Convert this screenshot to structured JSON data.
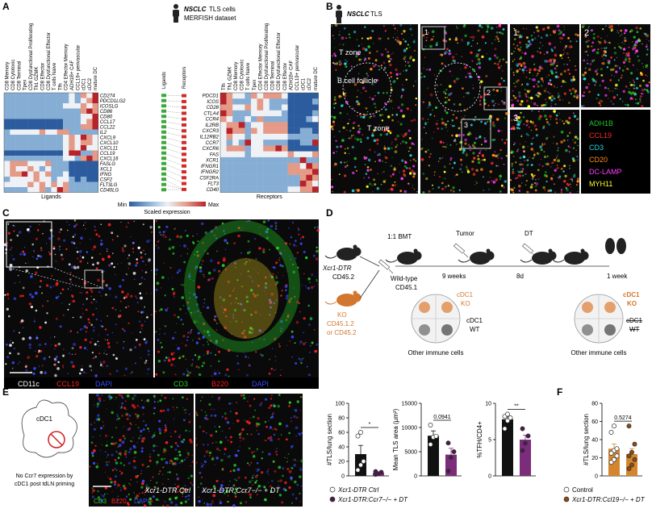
{
  "panel_a": {
    "letter": "A",
    "title": {
      "italic": "NSCLC",
      "rest": "TLS cells",
      "line2": "MERFISH dataset"
    },
    "ligand_cell_types": [
      "CD8 Memory",
      "CD8 Cytotoxic",
      "CD8 Terminal",
      "Tpex",
      "CD8 Dysfunctional Proliferating",
      "Th1 GZMK",
      "CD8 Effector",
      "CD8 Dysfunctional Effector",
      "T cells Naive",
      "Tfh",
      "CD4 Effector Memory",
      "ADH1B+ CAF",
      "CCL19+ perivascular",
      "cDC1",
      "cDC2",
      "mature DC"
    ],
    "ligands": [
      "CD274",
      "PDCD1LG2",
      "ICOSLG",
      "CD86",
      "CD80",
      "CCL17",
      "CCL22",
      "IL2",
      "CXCL9",
      "CXCL10",
      "CXCL11",
      "CCL19",
      "CXCL16",
      "FASLG",
      "XCL1",
      "IFNG",
      "CSF2",
      "FLT3LG",
      "CD40LG"
    ],
    "receptor_cell_types": [
      "Tfh",
      "Th1 GZMK",
      "CD8 Memory",
      "CD8 Cytotoxic",
      "T cells Naive",
      "Tpex",
      "CD4 Effector Memory",
      "CD8 Dysfunctional Proliferating",
      "CD8 Terminal",
      "CD8 Dysfunctional Effector",
      "CD8 Effector",
      "ADH1B+ CAF",
      "CCL19+ perivascular",
      "cDC1",
      "cDC2",
      "mature DC"
    ],
    "receptors": [
      "PDCD1",
      "ICOS",
      "CD28",
      "CTLA4",
      "CCR4",
      "IL2RB",
      "CXCR3",
      "IL12RB2",
      "CCR7",
      "CXCR6",
      "FAS",
      "XCR1",
      "IFNGR1",
      "IFNGR2",
      "CSF2RA",
      "FLT3",
      "CD40"
    ],
    "colormap": [
      "#2c5c9e",
      "#86aed4",
      "#eef1f5",
      "#e49a86",
      "#b8232a"
    ],
    "ligand_matrix": [
      [
        1,
        1,
        1,
        1,
        1,
        1,
        1,
        1,
        1,
        1,
        1,
        2,
        1,
        3,
        2,
        4
      ],
      [
        1,
        1,
        1,
        1,
        1,
        1,
        1,
        1,
        1,
        1,
        1,
        2,
        1,
        2,
        3,
        4
      ],
      [
        1,
        1,
        1,
        1,
        1,
        1,
        1,
        1,
        1,
        1,
        2,
        2,
        2,
        3,
        2,
        3
      ],
      [
        1,
        1,
        1,
        1,
        1,
        1,
        1,
        1,
        1,
        1,
        1,
        1,
        1,
        3,
        4,
        3
      ],
      [
        1,
        1,
        1,
        1,
        1,
        1,
        1,
        1,
        1,
        1,
        1,
        1,
        1,
        2,
        2,
        4
      ],
      [
        0,
        0,
        0,
        0,
        0,
        0,
        0,
        0,
        0,
        0,
        1,
        1,
        1,
        2,
        3,
        4
      ],
      [
        0,
        0,
        0,
        0,
        0,
        0,
        0,
        0,
        0,
        0,
        1,
        1,
        1,
        3,
        3,
        4
      ],
      [
        1,
        2,
        2,
        2,
        2,
        2,
        3,
        2,
        2,
        3,
        3,
        1,
        1,
        1,
        1,
        1
      ],
      [
        1,
        1,
        1,
        1,
        1,
        1,
        1,
        1,
        1,
        1,
        2,
        3,
        2,
        4,
        3,
        2
      ],
      [
        1,
        1,
        1,
        1,
        1,
        1,
        1,
        1,
        1,
        1,
        2,
        3,
        2,
        3,
        3,
        2
      ],
      [
        1,
        1,
        1,
        1,
        1,
        1,
        1,
        1,
        1,
        1,
        2,
        3,
        2,
        4,
        2,
        2
      ],
      [
        0,
        0,
        0,
        0,
        0,
        0,
        0,
        0,
        0,
        0,
        2,
        4,
        4,
        1,
        1,
        3
      ],
      [
        1,
        1,
        1,
        1,
        1,
        1,
        1,
        1,
        1,
        1,
        2,
        2,
        1,
        3,
        4,
        3
      ],
      [
        2,
        3,
        3,
        3,
        2,
        2,
        2,
        3,
        1,
        1,
        1,
        0,
        0,
        0,
        0,
        0
      ],
      [
        2,
        3,
        2,
        2,
        3,
        2,
        1,
        2,
        1,
        1,
        1,
        0,
        0,
        0,
        0,
        0
      ],
      [
        2,
        3,
        3,
        4,
        2,
        3,
        2,
        3,
        1,
        1,
        2,
        0,
        0,
        0,
        0,
        0
      ],
      [
        1,
        2,
        2,
        2,
        2,
        3,
        2,
        2,
        1,
        2,
        2,
        1,
        0,
        1,
        0,
        0
      ],
      [
        2,
        2,
        2,
        2,
        3,
        2,
        3,
        2,
        3,
        2,
        3,
        1,
        1,
        1,
        1,
        1
      ],
      [
        1,
        1,
        1,
        1,
        2,
        2,
        3,
        1,
        2,
        4,
        3,
        1,
        1,
        1,
        1,
        1
      ]
    ],
    "receptor_matrix": [
      [
        4,
        3,
        2,
        2,
        1,
        3,
        2,
        3,
        3,
        3,
        2,
        0,
        0,
        0,
        0,
        0
      ],
      [
        4,
        3,
        1,
        1,
        1,
        2,
        3,
        2,
        1,
        1,
        1,
        0,
        0,
        0,
        0,
        1
      ],
      [
        3,
        3,
        2,
        2,
        3,
        2,
        3,
        2,
        1,
        1,
        2,
        0,
        0,
        0,
        0,
        0
      ],
      [
        4,
        3,
        1,
        1,
        1,
        2,
        2,
        2,
        2,
        2,
        1,
        0,
        0,
        0,
        0,
        1
      ],
      [
        3,
        2,
        1,
        1,
        2,
        1,
        3,
        1,
        1,
        1,
        1,
        0,
        0,
        0,
        1,
        2
      ],
      [
        2,
        3,
        3,
        4,
        1,
        2,
        2,
        3,
        3,
        3,
        3,
        0,
        0,
        0,
        0,
        0
      ],
      [
        2,
        4,
        3,
        3,
        1,
        3,
        2,
        3,
        3,
        3,
        3,
        0,
        0,
        1,
        1,
        0
      ],
      [
        2,
        3,
        2,
        2,
        1,
        2,
        2,
        2,
        2,
        2,
        2,
        1,
        1,
        1,
        1,
        1
      ],
      [
        2,
        1,
        2,
        1,
        4,
        2,
        2,
        1,
        1,
        1,
        1,
        0,
        0,
        1,
        1,
        4
      ],
      [
        2,
        3,
        3,
        3,
        1,
        2,
        2,
        3,
        3,
        4,
        3,
        0,
        0,
        0,
        0,
        0
      ],
      [
        2,
        2,
        2,
        2,
        1,
        2,
        2,
        2,
        2,
        2,
        2,
        3,
        2,
        2,
        2,
        3
      ],
      [
        1,
        1,
        1,
        1,
        1,
        1,
        1,
        1,
        1,
        1,
        1,
        1,
        1,
        4,
        1,
        1
      ],
      [
        1,
        1,
        1,
        1,
        1,
        1,
        1,
        1,
        1,
        1,
        1,
        3,
        3,
        2,
        4,
        3
      ],
      [
        1,
        1,
        1,
        1,
        1,
        1,
        1,
        1,
        1,
        1,
        1,
        3,
        3,
        3,
        3,
        4
      ],
      [
        1,
        1,
        1,
        1,
        1,
        1,
        1,
        1,
        1,
        1,
        1,
        1,
        1,
        3,
        4,
        3
      ],
      [
        1,
        1,
        1,
        1,
        1,
        1,
        1,
        1,
        1,
        1,
        1,
        1,
        1,
        4,
        3,
        2
      ],
      [
        1,
        1,
        1,
        1,
        1,
        1,
        1,
        1,
        1,
        1,
        1,
        2,
        2,
        3,
        3,
        4
      ]
    ],
    "ligand_axis": "Ligands",
    "receptor_axis": "Receptors",
    "center_ligands": "Ligands",
    "center_receptors": "Receptors",
    "colorbar": {
      "min": "Min",
      "max": "Max",
      "label": "Scaled expression"
    }
  },
  "panel_b": {
    "letter": "B",
    "title": {
      "italic": "NSCLC",
      "rest": "TLS"
    },
    "regions": [
      "T zone",
      "B cell follicle",
      "T zone"
    ],
    "insets": [
      "1",
      "2",
      "3"
    ],
    "inset_titles": [
      "1",
      "2",
      "3"
    ],
    "markers": [
      {
        "name": "ADH1B",
        "color": "#22c32e"
      },
      {
        "name": "CCL19",
        "color": "#ff2a2a"
      },
      {
        "name": "CD3",
        "color": "#2fd5e0"
      },
      {
        "name": "CD20",
        "color": "#ff8c1a"
      },
      {
        "name": "DC-LAMP",
        "color": "#ff3cff"
      },
      {
        "name": "MYH11",
        "color": "#ffff2a"
      }
    ]
  },
  "panel_c": {
    "letter": "C",
    "left_channels": [
      {
        "name": "CD11c",
        "color": "#ffffff"
      },
      {
        "name": "CCL19",
        "color": "#ff2020"
      },
      {
        "name": "DAPI",
        "color": "#3a4cff"
      }
    ],
    "right_channels": [
      {
        "name": "CD3",
        "color": "#27d02a"
      },
      {
        "name": "B220",
        "color": "#ff2020"
      },
      {
        "name": "DAPI",
        "color": "#3a4cff"
      }
    ]
  },
  "panel_d": {
    "letter": "D",
    "donor1": {
      "italic": "Xcr1-DTR",
      "line2": "CD45.2"
    },
    "donor2": {
      "ko": "KO",
      "line2": "CD45.1.2",
      "line3": "or CD45.2"
    },
    "bmt": "1:1 BMT",
    "recipient": [
      "Wild-type",
      "CD45.1"
    ],
    "tumor": "Tumor",
    "weeks": "9 weeks",
    "dt": "DT",
    "days": "8d",
    "week1": "1 week",
    "ko1": [
      "cDC1",
      "KO"
    ],
    "wt1": [
      "cDC1",
      "WT"
    ],
    "other1": "Other immune cells",
    "ko2": [
      "cDC1",
      "KO"
    ],
    "wt2": [
      "cDC1",
      "WT"
    ],
    "other2": "Other immune cells"
  },
  "panel_e": {
    "letter": "E",
    "cell_label": "cDC1",
    "note": [
      "No Ccr7 expression by",
      "cDC1 post tdLN priming"
    ],
    "image_labels": [
      "Xcr1-DTR Ctrl",
      "Xcr1-DTR:Ccr7−/− + DT"
    ],
    "channels": [
      {
        "name": "CD3",
        "color": "#27d02a"
      },
      {
        "name": "B220",
        "color": "#ff2020"
      },
      {
        "name": "DAPI",
        "color": "#3a4cff"
      }
    ],
    "legend": [
      {
        "name": "Xcr1-DTR Ctrl",
        "fill": "#ffffff"
      },
      {
        "name": "Xcr1-DTR:Ccr7−/− + DT",
        "fill": "#4a1a4a"
      }
    ]
  },
  "panel_f": {
    "letter": "F",
    "legend": [
      {
        "name": "Control",
        "fill": "#ffffff"
      },
      {
        "name": "Xcr1-DTR:Ccl19−/− + DT",
        "fill": "#8b4a12"
      }
    ]
  },
  "chart_data": [
    {
      "type": "bar",
      "ylabel": "#TLS/lung section",
      "ylim": [
        0,
        100
      ],
      "yticks": [
        0,
        20,
        40,
        60,
        80,
        100
      ],
      "values": [
        30,
        4
      ],
      "errors": [
        12,
        1.5
      ],
      "colors": [
        "#111111",
        "#7b2d7b"
      ],
      "points": [
        [
          8,
          15,
          20,
          55,
          60
        ],
        [
          2,
          3,
          5,
          6
        ]
      ],
      "point_fills": [
        "#ffffff",
        "#4a1a4a"
      ],
      "annotation": "*"
    },
    {
      "type": "bar",
      "ylabel": "Mean TLS area (µm²)",
      "ylim": [
        0,
        15000
      ],
      "yticks": [
        0,
        5000,
        10000,
        15000
      ],
      "values": [
        8300,
        4400
      ],
      "errors": [
        1000,
        1300
      ],
      "colors": [
        "#111111",
        "#7b2d7b"
      ],
      "points": [
        [
          6500,
          8000,
          8200,
          10500
        ],
        [
          1000,
          3800,
          5000,
          6800
        ]
      ],
      "point_fills": [
        "#ffffff",
        "#4a1a4a"
      ],
      "annotation": "0.0941"
    },
    {
      "type": "bar",
      "ylabel": "%TFH/CD4+",
      "ylim": [
        0,
        10
      ],
      "yticks": [
        0,
        5,
        10
      ],
      "values": [
        7.8,
        5
      ],
      "errors": [
        0.4,
        0.6
      ],
      "colors": [
        "#111111",
        "#7b2d7b"
      ],
      "points": [
        [
          6.5,
          7.6,
          8,
          8.2,
          8.5
        ],
        [
          3.5,
          4.5,
          5.5,
          6.5
        ]
      ],
      "point_fills": [
        "#ffffff",
        "#4a1a4a"
      ],
      "annotation": "**"
    },
    {
      "type": "bar",
      "ylabel": "#TLS/lung section",
      "ylim": [
        0,
        80
      ],
      "yticks": [
        0,
        20,
        40,
        60,
        80
      ],
      "values": [
        30,
        24
      ],
      "errors": [
        5,
        6
      ],
      "colors": [
        "#d4862e",
        "#d4862e"
      ],
      "points": [
        [
          15,
          18,
          22,
          25,
          28,
          30,
          48,
          55
        ],
        [
          8,
          12,
          18,
          22,
          26,
          35,
          55
        ]
      ],
      "point_fills": [
        "#ffffff",
        "#8b4a12"
      ],
      "annotation": "0.5274"
    }
  ]
}
